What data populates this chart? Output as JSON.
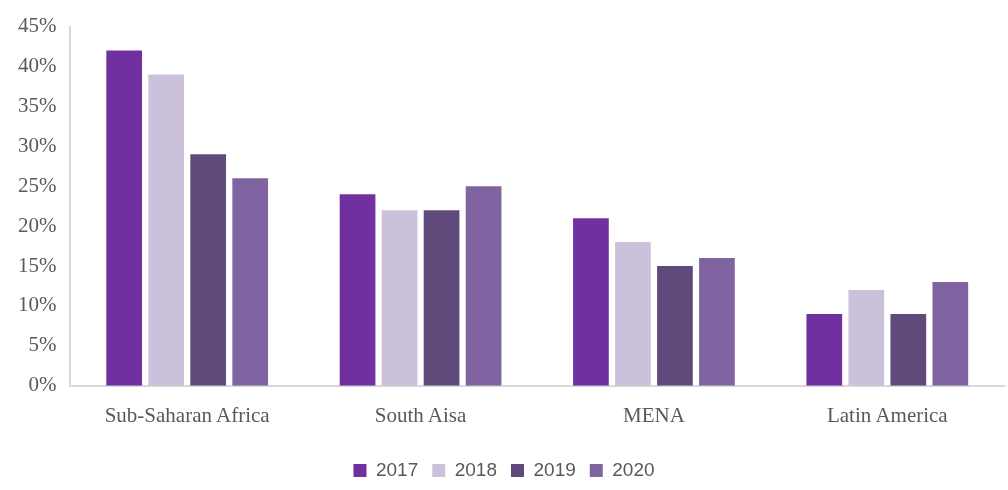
{
  "chart_data": {
    "type": "bar",
    "categories": [
      "Sub-Saharan Africa",
      "South Aisa",
      "MENA",
      "Latin America"
    ],
    "series": [
      {
        "name": "2017",
        "color": "#7030a0",
        "values": [
          42,
          24,
          21,
          9
        ]
      },
      {
        "name": "2018",
        "color": "#ccc1da",
        "values": [
          39,
          22,
          18,
          12
        ]
      },
      {
        "name": "2019",
        "color": "#604a7b",
        "values": [
          29,
          22,
          15,
          9
        ]
      },
      {
        "name": "2020",
        "color": "#8064a2",
        "values": [
          26,
          25,
          16,
          13
        ]
      }
    ],
    "ylim": [
      0,
      45
    ],
    "yticks": [
      {
        "value": 0,
        "label": "0%"
      },
      {
        "value": 5,
        "label": "5%"
      },
      {
        "value": 10,
        "label": "10%"
      },
      {
        "value": 15,
        "label": "15%"
      },
      {
        "value": 20,
        "label": "20%"
      },
      {
        "value": 25,
        "label": "25%"
      },
      {
        "value": 30,
        "label": "30%"
      },
      {
        "value": 35,
        "label": "35%"
      },
      {
        "value": 40,
        "label": "40%"
      },
      {
        "value": 45,
        "label": "45%"
      }
    ],
    "grid": false,
    "legend": "bottom"
  }
}
